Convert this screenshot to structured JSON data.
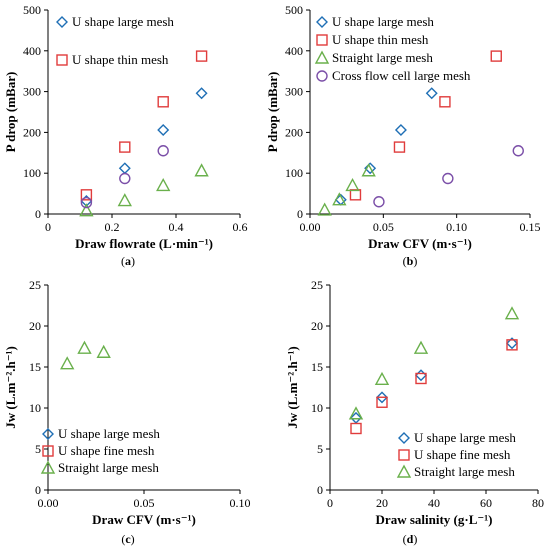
{
  "colors": {
    "diamond": "#1f6fb5",
    "square": "#e03c3c",
    "triangle": "#6ab04c",
    "circle": "#7b4fa8"
  },
  "chart_data": [
    {
      "panel": "a",
      "type": "scatter",
      "xlabel": "Draw flowrate (L·min⁻¹)",
      "ylabel": "P drop (mBar)",
      "xlim": [
        0,
        0.6
      ],
      "ylim": [
        0,
        500
      ],
      "xticks": [
        "0",
        "0.2",
        "0.4",
        "0.6"
      ],
      "yticks": [
        "0",
        "100",
        "200",
        "300",
        "400",
        "500"
      ],
      "grid": false,
      "series": [
        {
          "name": "U shape large mesh",
          "marker": "diamond",
          "x": [
            0.12,
            0.24,
            0.36,
            0.48
          ],
          "y": [
            32,
            112,
            206,
            296
          ]
        },
        {
          "name": "U shape thin mesh",
          "marker": "square",
          "x": [
            0.12,
            0.24,
            0.36,
            0.48
          ],
          "y": [
            47,
            164,
            275,
            387
          ]
        },
        {
          "name": "",
          "marker": "triangle",
          "x": [
            0.12,
            0.24,
            0.36,
            0.48
          ],
          "y": [
            8,
            33,
            70,
            106
          ]
        },
        {
          "name": "",
          "marker": "circle",
          "x": [
            0.12,
            0.24,
            0.36
          ],
          "y": [
            28,
            87,
            155
          ]
        }
      ]
    },
    {
      "panel": "b",
      "type": "scatter",
      "xlabel": "Draw CFV (m·s⁻¹)",
      "ylabel": "P drop (mBar)",
      "xlim": [
        0,
        0.15
      ],
      "ylim": [
        0,
        500
      ],
      "xticks": [
        "0.00",
        "0.05",
        "0.10",
        "0.15"
      ],
      "yticks": [
        "0",
        "100",
        "200",
        "300",
        "400",
        "500"
      ],
      "grid": false,
      "series": [
        {
          "name": "U shape large mesh",
          "marker": "diamond",
          "x": [
            0.021,
            0.041,
            0.062,
            0.083
          ],
          "y": [
            35,
            112,
            206,
            296
          ]
        },
        {
          "name": "U shape thin mesh",
          "marker": "square",
          "x": [
            0.031,
            0.061,
            0.092,
            0.127
          ],
          "y": [
            47,
            164,
            275,
            387
          ]
        },
        {
          "name": "Straight large mesh",
          "marker": "triangle",
          "x": [
            0.01,
            0.02,
            0.029,
            0.04
          ],
          "y": [
            10,
            35,
            70,
            106
          ]
        },
        {
          "name": "Cross flow cell large mesh",
          "marker": "circle",
          "x": [
            0.047,
            0.094,
            0.142
          ],
          "y": [
            30,
            87,
            155
          ]
        }
      ]
    },
    {
      "panel": "c",
      "type": "scatter",
      "xlabel": "Draw CFV (m·s⁻¹)",
      "ylabel": "Jw (L.m⁻².h⁻¹)",
      "xlim": [
        0,
        0.1
      ],
      "ylim": [
        0,
        25
      ],
      "xticks": [
        "0.00",
        "0.05",
        "0.10"
      ],
      "yticks": [
        "0",
        "5",
        "10",
        "15",
        "20",
        "25"
      ],
      "grid": false,
      "series": [
        {
          "name": "U shape large mesh",
          "marker": "diamond",
          "x": [],
          "y": []
        },
        {
          "name": "U shape fine mesh",
          "marker": "square",
          "x": [],
          "y": []
        },
        {
          "name": "Straight large mesh",
          "marker": "triangle",
          "x": [
            0.01,
            0.019,
            0.029
          ],
          "y": [
            15.4,
            17.3,
            16.8
          ]
        }
      ]
    },
    {
      "panel": "d",
      "type": "scatter",
      "xlabel": "Draw salinity (g·L⁻¹)",
      "ylabel": "Jw (L.m⁻².h⁻¹)",
      "xlim": [
        0,
        80
      ],
      "ylim": [
        0,
        25
      ],
      "xticks": [
        "0",
        "20",
        "40",
        "60",
        "80"
      ],
      "yticks": [
        "0",
        "5",
        "10",
        "15",
        "20",
        "25"
      ],
      "grid": false,
      "series": [
        {
          "name": "U shape large mesh",
          "marker": "diamond",
          "x": [
            10,
            20,
            35,
            70
          ],
          "y": [
            8.8,
            11.3,
            14,
            17.9
          ]
        },
        {
          "name": "U shape fine mesh",
          "marker": "square",
          "x": [
            10,
            20,
            35,
            70
          ],
          "y": [
            7.5,
            10.7,
            13.6,
            17.7
          ]
        },
        {
          "name": "Straight large mesh",
          "marker": "triangle",
          "x": [
            10,
            20,
            35,
            70
          ],
          "y": [
            9.3,
            13.5,
            17.3,
            21.5
          ]
        }
      ]
    }
  ]
}
